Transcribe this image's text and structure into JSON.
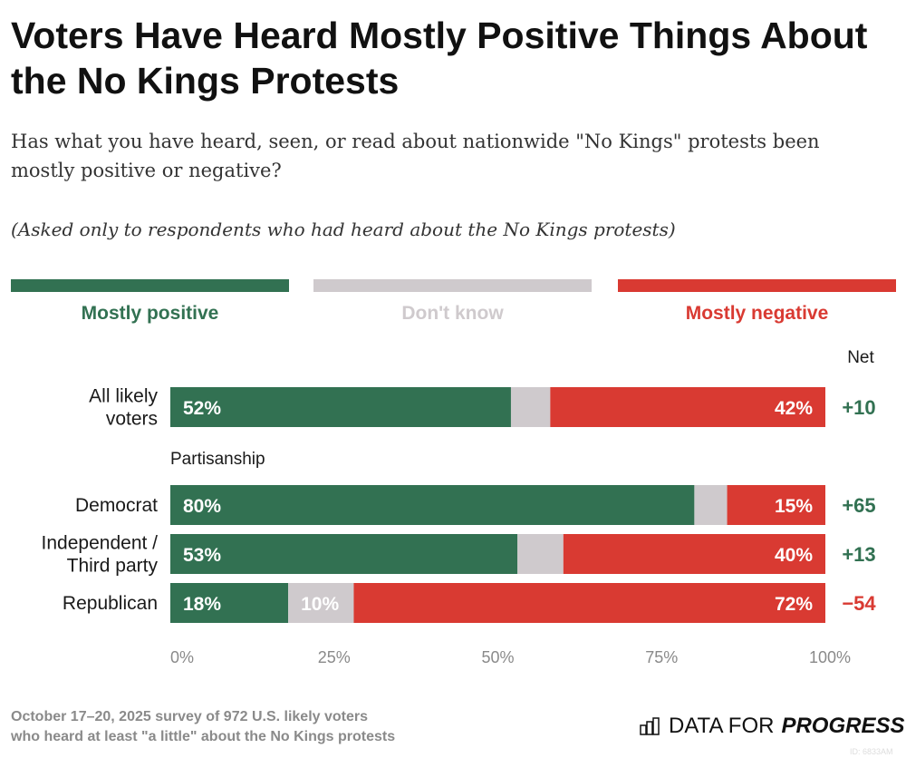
{
  "title": "Voters Have Heard Mostly Positive Things About the No Kings Protests",
  "subtitle": "Has what you have heard, seen, or read about nationwide \"No Kings\" protests been mostly positive or negative?",
  "note": "(Asked only to respondents who had heard about the No Kings protests)",
  "footer": {
    "line1": "October 17–20, 2025 survey of 972 U.S. likely voters",
    "line2": "who heard at least \"a little\" about the No Kings protests"
  },
  "logo": {
    "text_light": "DATA FOR",
    "text_bold": "PROGRESS",
    "icon": "bar-chart-icon"
  },
  "image_id": "ID: 6833AM",
  "chart_data": {
    "type": "bar",
    "orientation": "horizontal",
    "stacked": true,
    "legend": [
      "Mostly positive",
      "Don't know",
      "Mostly negative"
    ],
    "legend_placement": "top",
    "colors": {
      "Mostly positive": "#327152",
      "Don't know": "#cfcacd",
      "Mostly negative": "#d93a32"
    },
    "net_header": "Net",
    "group_label": "Partisanship",
    "categories": [
      {
        "label_lines": [
          "All likely",
          "voters"
        ],
        "positive": 52,
        "dont_know": 6,
        "negative": 42,
        "labels": [
          "52%",
          "",
          "42%"
        ],
        "net": "+10"
      },
      {
        "label_lines": [
          "Democrat"
        ],
        "positive": 80,
        "dont_know": 5,
        "negative": 15,
        "labels": [
          "80%",
          "",
          "15%"
        ],
        "net": "+65"
      },
      {
        "label_lines": [
          "Independent /",
          "Third party"
        ],
        "positive": 53,
        "dont_know": 7,
        "negative": 40,
        "labels": [
          "53%",
          "",
          "40%"
        ],
        "net": "+13"
      },
      {
        "label_lines": [
          "Republican"
        ],
        "positive": 18,
        "dont_know": 10,
        "negative": 72,
        "labels": [
          "18%",
          "10%",
          "72%"
        ],
        "net": "−54"
      }
    ],
    "xlim": [
      0,
      100
    ],
    "xticks": [
      "0%",
      "25%",
      "50%",
      "75%",
      "100%"
    ],
    "grid": false
  }
}
